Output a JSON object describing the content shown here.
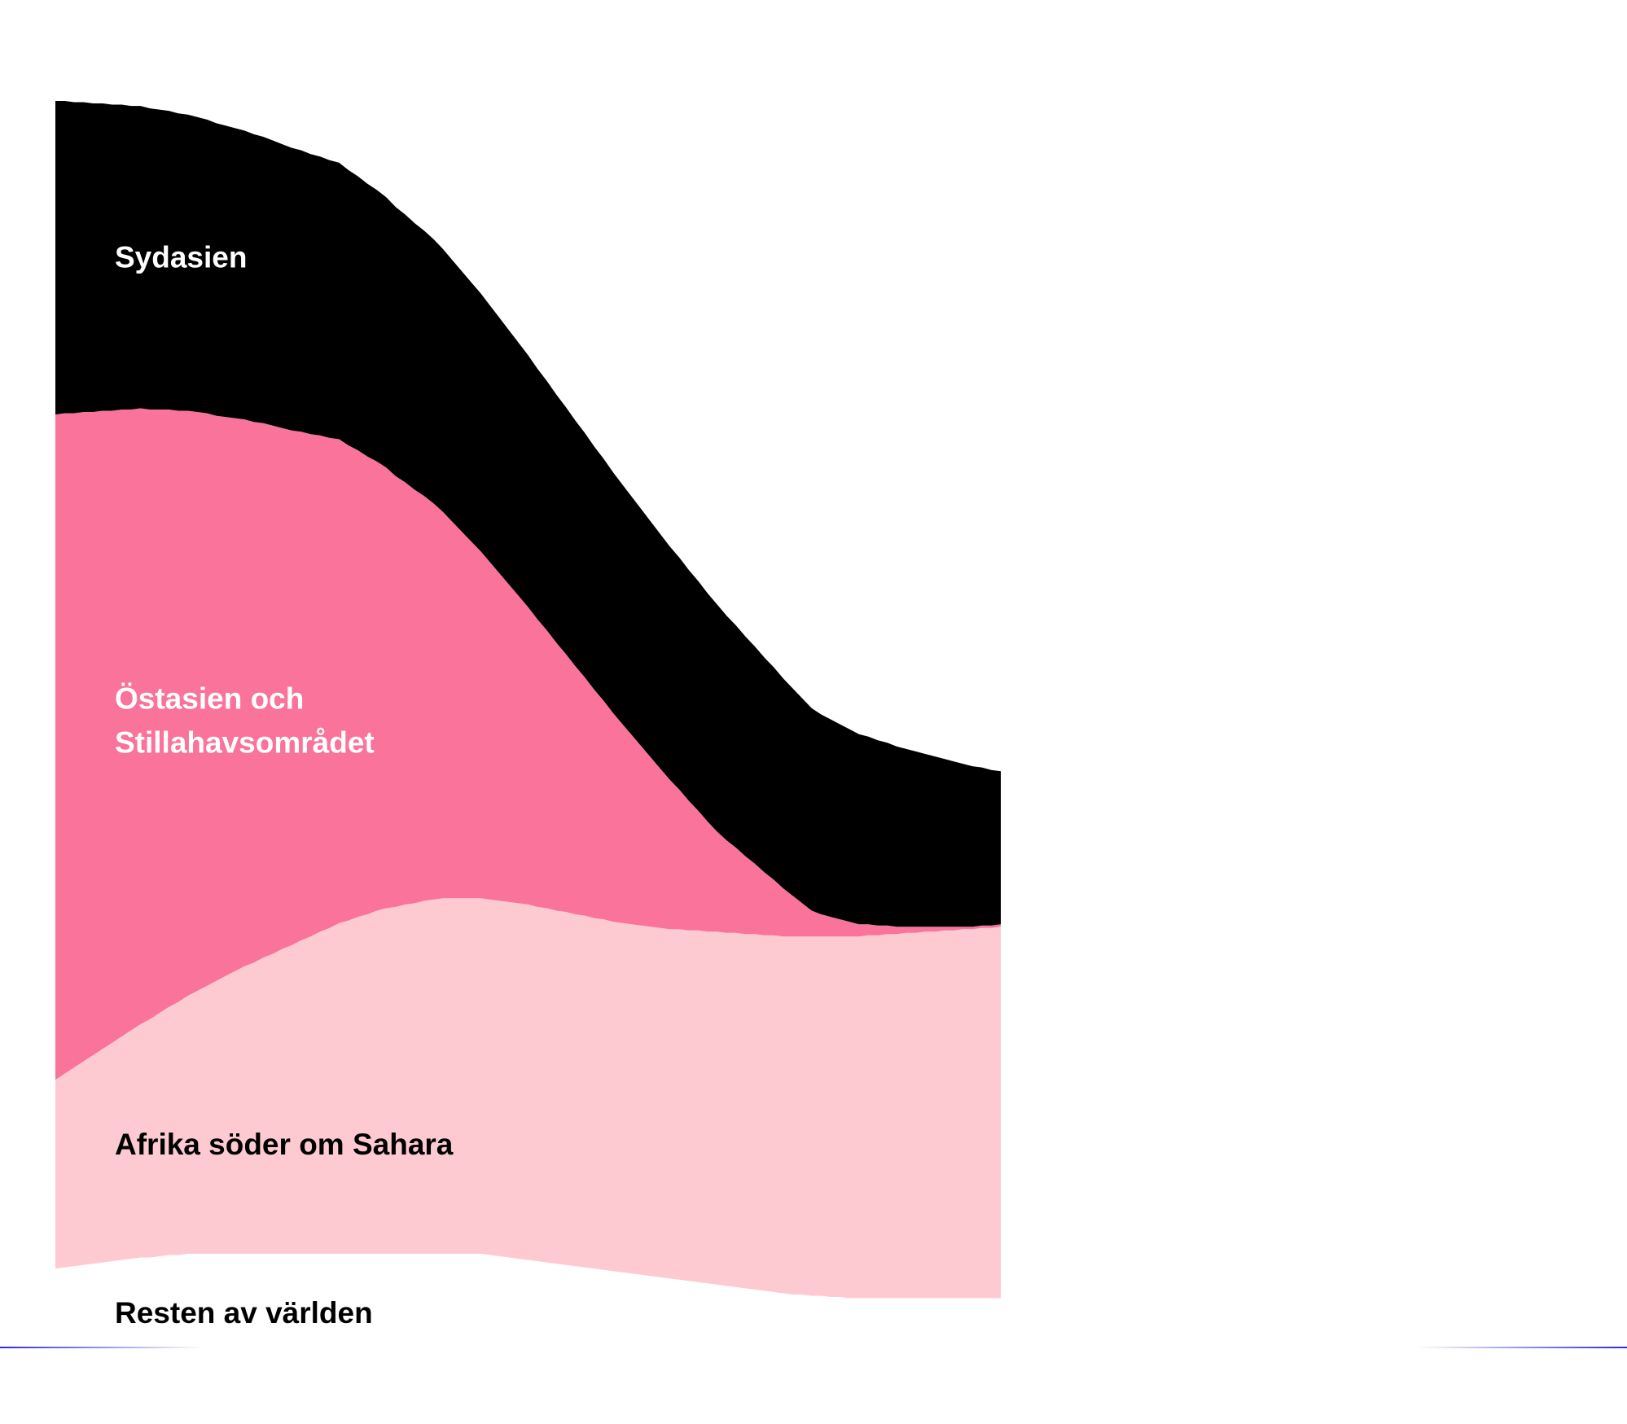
{
  "chart_data": {
    "type": "area",
    "stacked": true,
    "title": "",
    "xlabel": "",
    "ylabel": "",
    "grid": false,
    "legend": "inline labels",
    "x_index": [
      0,
      1,
      2,
      3,
      4,
      5,
      6,
      7,
      8,
      9,
      10,
      11,
      12,
      13,
      14,
      15,
      16,
      17,
      18,
      19,
      20,
      21,
      22,
      23,
      24,
      25,
      26,
      27,
      28,
      29,
      30,
      31,
      32,
      33,
      34,
      35,
      36,
      37,
      38,
      39,
      40,
      41,
      42,
      43,
      44,
      45,
      46,
      47,
      48,
      49,
      50,
      51,
      52,
      53,
      54,
      55,
      56,
      57,
      58,
      59,
      60,
      61,
      62,
      63,
      64,
      65,
      66,
      67,
      68,
      69,
      70,
      71,
      72,
      73,
      74,
      75,
      76,
      77,
      78,
      79,
      80,
      81,
      82,
      83,
      84,
      85,
      86,
      87,
      88,
      89,
      90,
      91,
      92,
      93,
      94,
      95,
      96,
      97,
      98,
      99,
      100
    ],
    "series": [
      {
        "name": "Resten av världen",
        "color": "#ffffff",
        "label_color": "#000000",
        "values": [
          5.4,
          5.5,
          5.6,
          5.7,
          5.8,
          5.9,
          6.0,
          6.1,
          6.2,
          6.3,
          6.3,
          6.4,
          6.5,
          6.5,
          6.6,
          6.6,
          6.6,
          6.6,
          6.6,
          6.6,
          6.6,
          6.6,
          6.6,
          6.6,
          6.6,
          6.6,
          6.6,
          6.6,
          6.6,
          6.6,
          6.6,
          6.6,
          6.6,
          6.6,
          6.6,
          6.6,
          6.6,
          6.6,
          6.6,
          6.6,
          6.6,
          6.6,
          6.6,
          6.6,
          6.6,
          6.6,
          6.5,
          6.4,
          6.3,
          6.2,
          6.1,
          6.0,
          5.9,
          5.8,
          5.7,
          5.6,
          5.5,
          5.4,
          5.3,
          5.2,
          5.1,
          5.0,
          4.9,
          4.8,
          4.7,
          4.6,
          4.5,
          4.4,
          4.3,
          4.2,
          4.1,
          4.0,
          3.9,
          3.8,
          3.7,
          3.6,
          3.5,
          3.4,
          3.3,
          3.3,
          3.2,
          3.2,
          3.1,
          3.1,
          3.0,
          3.0,
          3.0,
          3.0,
          3.0,
          3.0,
          3.0,
          3.0,
          3.0,
          3.0,
          3.0,
          3.0,
          3.0,
          3.0,
          3.0,
          3.0,
          3.0
        ]
      },
      {
        "name": "Afrika söder om Sahara",
        "color": "#fecad2",
        "label_color": "#000000",
        "values": [
          15.3,
          15.7,
          16.1,
          16.5,
          16.9,
          17.3,
          17.7,
          18.1,
          18.5,
          18.9,
          19.3,
          19.7,
          20.1,
          20.5,
          20.9,
          21.3,
          21.7,
          22.1,
          22.5,
          22.9,
          23.3,
          23.6,
          24.0,
          24.3,
          24.7,
          25.0,
          25.4,
          25.7,
          26.1,
          26.4,
          26.8,
          27.0,
          27.3,
          27.5,
          27.8,
          28.0,
          28.1,
          28.3,
          28.4,
          28.6,
          28.7,
          28.8,
          28.8,
          28.8,
          28.8,
          28.8,
          28.8,
          28.8,
          28.8,
          28.8,
          28.8,
          28.7,
          28.7,
          28.6,
          28.6,
          28.5,
          28.5,
          28.4,
          28.4,
          28.3,
          28.3,
          28.3,
          28.3,
          28.3,
          28.3,
          28.3,
          28.4,
          28.4,
          28.5,
          28.5,
          28.6,
          28.6,
          28.7,
          28.7,
          28.8,
          28.8,
          28.9,
          28.9,
          29.0,
          29.0,
          29.1,
          29.1,
          29.2,
          29.2,
          29.3,
          29.3,
          29.4,
          29.4,
          29.5,
          29.5,
          29.6,
          29.6,
          29.7,
          29.7,
          29.8,
          29.8,
          29.9,
          29.9,
          30.0,
          30.0,
          30.1
        ]
      },
      {
        "name": "Östasien och Stillahavsområdet",
        "color": "#f9739b",
        "label_color": "#ffffff",
        "values": [
          53.9,
          53.5,
          53.0,
          52.6,
          52.1,
          51.7,
          51.2,
          50.8,
          50.3,
          49.9,
          49.4,
          48.9,
          48.4,
          47.9,
          47.4,
          46.9,
          46.4,
          45.8,
          45.3,
          44.8,
          44.3,
          43.8,
          43.3,
          42.8,
          42.2,
          41.7,
          41.2,
          40.7,
          40.2,
          39.7,
          39.2,
          38.5,
          37.8,
          37.1,
          36.4,
          35.7,
          34.9,
          34.2,
          33.5,
          32.8,
          32.1,
          31.3,
          30.5,
          29.7,
          28.9,
          28.1,
          27.3,
          26.5,
          25.7,
          24.9,
          24.1,
          23.3,
          22.5,
          21.7,
          20.9,
          20.1,
          19.3,
          18.5,
          17.7,
          16.9,
          16.1,
          15.3,
          14.5,
          13.7,
          12.9,
          12.1,
          11.3,
          10.5,
          9.7,
          8.9,
          8.1,
          7.5,
          6.9,
          6.3,
          5.7,
          5.1,
          4.5,
          3.9,
          3.3,
          2.7,
          2.1,
          1.8,
          1.6,
          1.4,
          1.2,
          1.0,
          0.9,
          0.8,
          0.7,
          0.6,
          0.5,
          0.5,
          0.4,
          0.4,
          0.3,
          0.3,
          0.2,
          0.2,
          0.2,
          0.2,
          0.2
        ]
      },
      {
        "name": "Sydasien",
        "color": "#000000",
        "label_color": "#ffffff",
        "values": [
          25.4,
          25.3,
          25.2,
          25.1,
          25.0,
          24.9,
          24.8,
          24.7,
          24.6,
          24.5,
          24.4,
          24.3,
          24.2,
          24.1,
          24.0,
          23.9,
          23.8,
          23.7,
          23.6,
          23.5,
          23.4,
          23.3,
          23.2,
          23.1,
          23.0,
          22.9,
          22.8,
          22.7,
          22.6,
          22.5,
          22.4,
          22.3,
          22.2,
          22.1,
          22.0,
          21.9,
          21.8,
          21.7,
          21.6,
          21.5,
          21.4,
          21.3,
          21.2,
          21.1,
          21.0,
          20.9,
          20.8,
          20.7,
          20.6,
          20.5,
          20.4,
          20.3,
          20.2,
          20.1,
          20.0,
          19.9,
          19.8,
          19.7,
          19.6,
          19.5,
          19.4,
          19.3,
          19.2,
          19.1,
          19.0,
          18.9,
          18.8,
          18.7,
          18.6,
          18.5,
          18.4,
          18.2,
          18.0,
          17.8,
          17.6,
          17.4,
          17.2,
          17.0,
          16.8,
          16.6,
          16.4,
          16.2,
          16.0,
          15.8,
          15.6,
          15.4,
          15.2,
          15.0,
          14.8,
          14.6,
          14.4,
          14.2,
          14.0,
          13.8,
          13.6,
          13.4,
          13.2,
          13.0,
          12.8,
          12.6,
          12.4
        ]
      }
    ],
    "ylim": [
      0,
      100
    ]
  }
}
